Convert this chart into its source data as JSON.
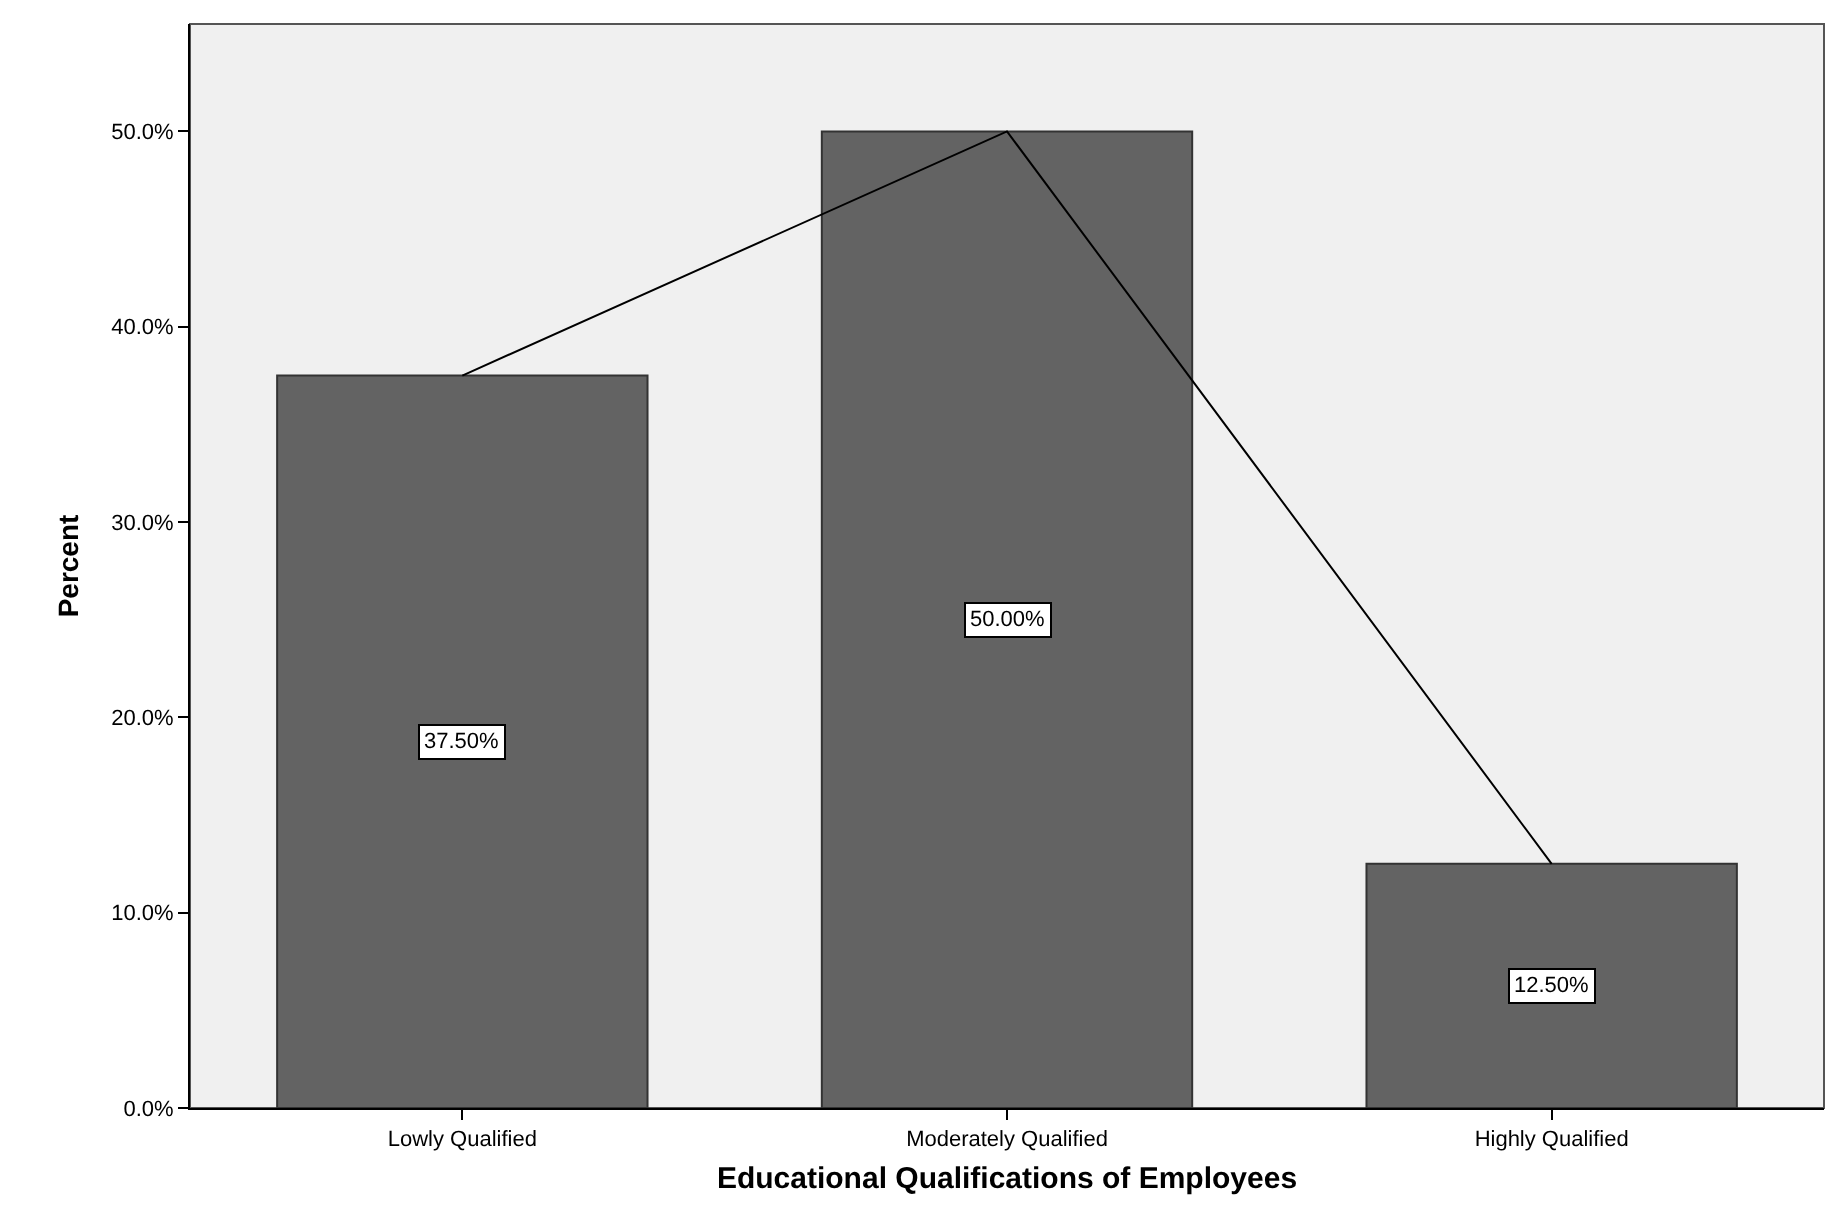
{
  "chart_data": {
    "type": "bar",
    "xlabel": "Educational Qualifications of Employees",
    "ylabel": "Percent",
    "categories": [
      "Lowly Qualified",
      "Moderately Qualified",
      "Highly Qualified"
    ],
    "series": [
      {
        "color": "#636363",
        "values": [
          37.5,
          50,
          12.5
        ],
        "value_labels": [
          "37.50%",
          "50.00%",
          "12.50%"
        ]
      },
      {
        "type": "line",
        "color": "#000000",
        "values": [
          37.5,
          50,
          12.5
        ],
        "marker": "none",
        "line_style": "solid"
      }
    ],
    "ylim": [
      0,
      55.5
    ],
    "yticks": [
      {
        "value": 0,
        "label": "0.0%"
      },
      {
        "value": 10,
        "label": "10.0%"
      },
      {
        "value": 20,
        "label": "20.0%"
      },
      {
        "value": 30,
        "label": "30.0%"
      },
      {
        "value": 40,
        "label": "40.0%"
      },
      {
        "value": 50,
        "label": "50.0%"
      }
    ],
    "grid": false
  }
}
